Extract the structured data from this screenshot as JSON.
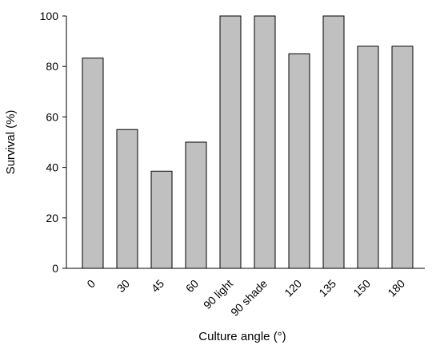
{
  "chart_data": {
    "type": "bar",
    "title": "",
    "xlabel": "Culture angle (°)",
    "ylabel": "Survival (%)",
    "categories": [
      "0",
      "30",
      "45",
      "60",
      "90 light",
      "90 shade",
      "120",
      "135",
      "150",
      "180"
    ],
    "values": [
      83.3,
      55,
      38.5,
      50,
      100,
      100,
      85,
      100,
      88,
      88
    ],
    "ylim": [
      0,
      100
    ],
    "yticks": [
      0,
      20,
      40,
      60,
      80,
      100
    ],
    "grid": false,
    "legend": "none",
    "bar_color": "#c0c0c0",
    "bar_edge_color": "#000000",
    "axis_color": "#000000"
  }
}
